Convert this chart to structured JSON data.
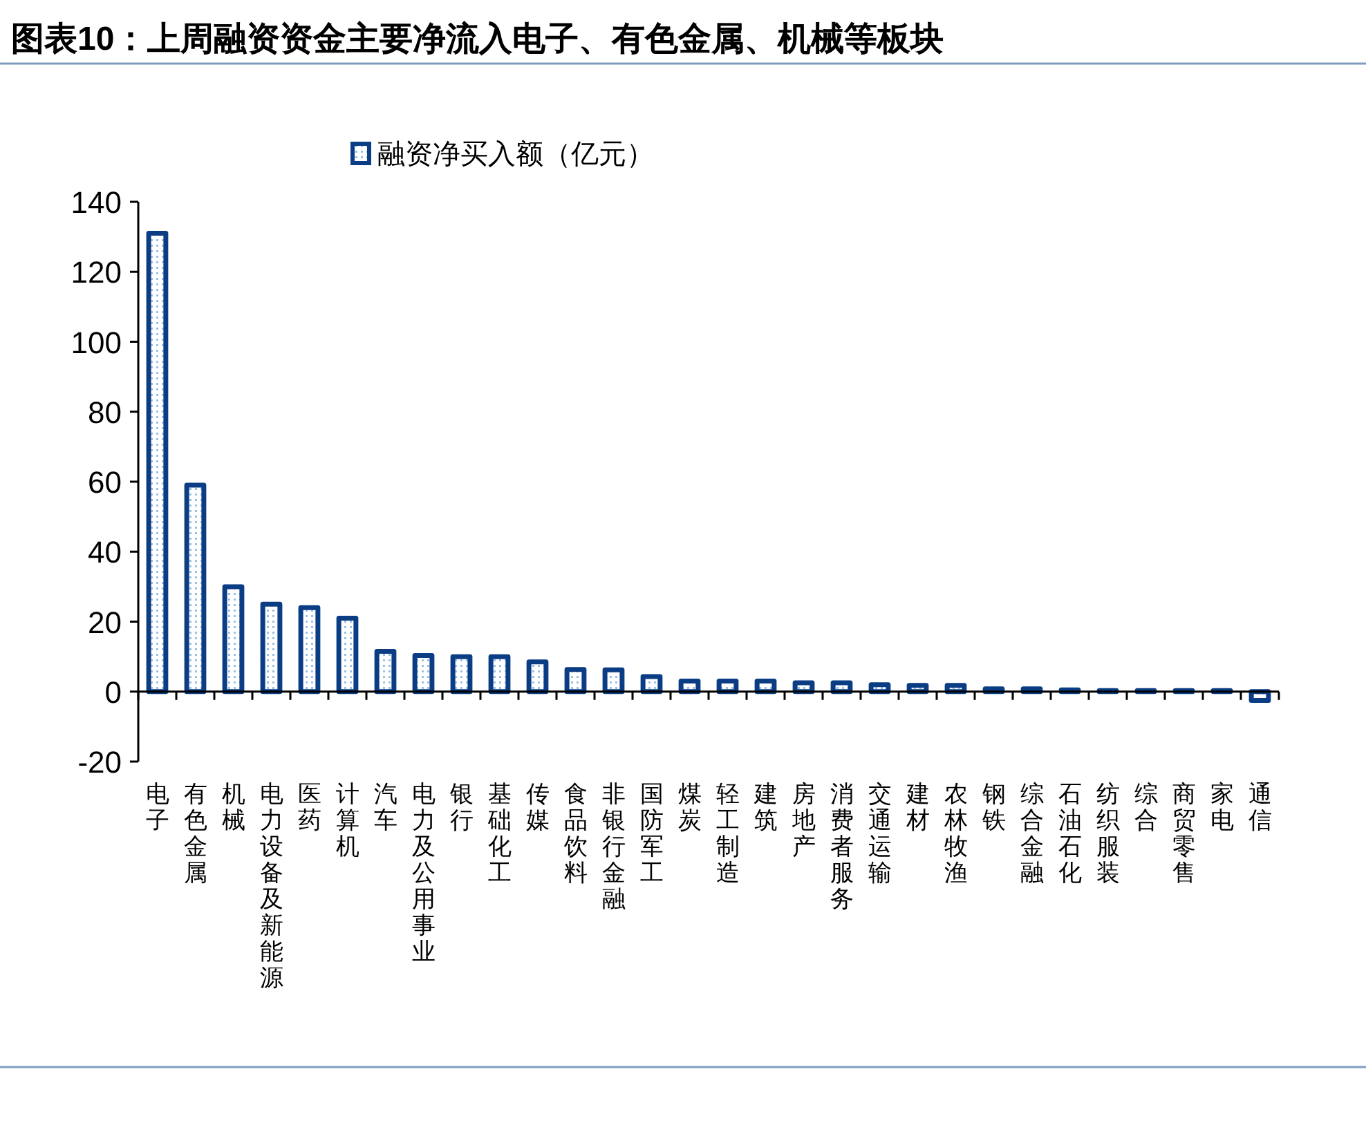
{
  "chart_data": {
    "type": "bar",
    "title": "图表10：上周融资资金主要净流入电子、有色金属、机械等板块",
    "categories": [
      "电子",
      "有色金属",
      "机械",
      "电力设备及新能源",
      "医药",
      "计算机",
      "汽车",
      "电力及公用事业",
      "银行",
      "基础化工",
      "传媒",
      "食品饮料",
      "非银行金融",
      "国防军工",
      "煤炭",
      "轻工制造",
      "建筑",
      "房地产",
      "消费者服务",
      "交通运输",
      "建材",
      "农林牧渔",
      "钢铁",
      "综合金融",
      "石油石化",
      "纺织服装",
      "综合",
      "商贸零售",
      "家电",
      "通信"
    ],
    "series": [
      {
        "name": "融资净买入额（亿元）",
        "color": "#0b3d84",
        "values": [
          131,
          59,
          30,
          25,
          24,
          21,
          11.5,
          10.3,
          10,
          10,
          8.5,
          6.3,
          6.2,
          4.3,
          3,
          3,
          3,
          2.5,
          2.5,
          2,
          1.8,
          1.8,
          0.8,
          0.8,
          0.5,
          0.3,
          0.3,
          0.3,
          0.3,
          -2.5
        ]
      }
    ],
    "ylim": [
      -20,
      140
    ],
    "yticks": [
      -20,
      0,
      20,
      40,
      60,
      80,
      100,
      120,
      140
    ],
    "legend": "top"
  }
}
